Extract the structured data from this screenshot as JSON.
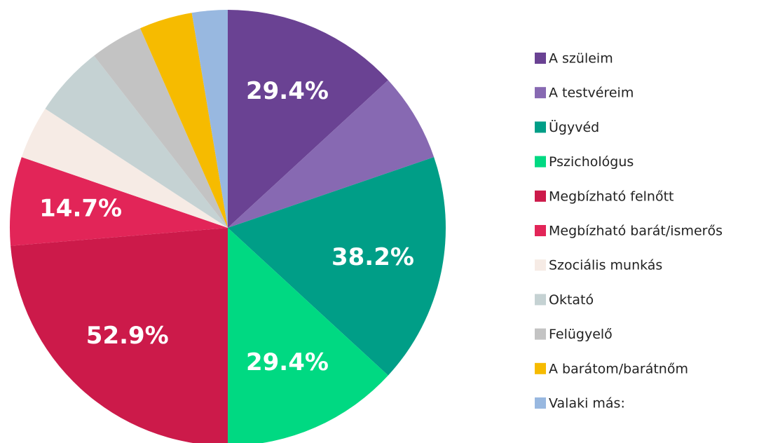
{
  "chart_data": {
    "type": "pie",
    "categories": [
      "A szüleim",
      "A testvéreim",
      "Ügyvéd",
      "Pszichológus",
      "Megbízható felnőtt",
      "Megbízható barát/ismerős",
      "Szociális munkás",
      "Oktató",
      "Felügyelő",
      "A barátom/barátnőm",
      "Valaki más:"
    ],
    "values": [
      29.4,
      14.7,
      38.2,
      29.4,
      52.9,
      14.7,
      8.8,
      11.8,
      8.8,
      8.8,
      5.9
    ],
    "value_labels": [
      "29.4%",
      null,
      "38.2%",
      "29.4%",
      "52.9%",
      "14.7%",
      null,
      null,
      null,
      null,
      null
    ],
    "colors": [
      "#6a4293",
      "#8769b2",
      "#009e87",
      "#00d982",
      "#cc1a4a",
      "#e22558",
      "#f6ebe5",
      "#c5d2d3",
      "#c3c3c3",
      "#f6bb00",
      "#98b8e0"
    ],
    "legend": "right"
  }
}
